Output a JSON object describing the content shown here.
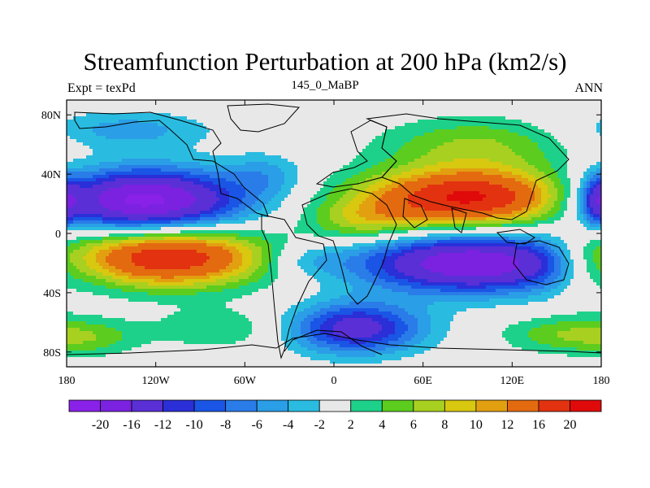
{
  "title": "Streamfunction Perturbation at 200 hPa (km2/s)",
  "left_string": "Expt = texPd",
  "center_string": "145_0_MaBP",
  "right_string": "ANN",
  "map": {
    "lon_range": [
      -180,
      180
    ],
    "lat_range": [
      -90,
      90
    ],
    "lon_ticks": [
      {
        "value": -180,
        "label": "180"
      },
      {
        "value": -120,
        "label": "120W"
      },
      {
        "value": -60,
        "label": "60W"
      },
      {
        "value": 0,
        "label": "0"
      },
      {
        "value": 60,
        "label": "60E"
      },
      {
        "value": 120,
        "label": "120E"
      },
      {
        "value": 180,
        "label": "180"
      }
    ],
    "lat_ticks": [
      {
        "value": 80,
        "label": "80N"
      },
      {
        "value": 40,
        "label": "40N"
      },
      {
        "value": 0,
        "label": "0"
      },
      {
        "value": -40,
        "label": "40S"
      },
      {
        "value": -80,
        "label": "80S"
      }
    ],
    "zero_band_color": "#e8e8e8",
    "anomalies": [
      {
        "lon": -130,
        "lat": 22,
        "amp": -22,
        "wlon": 48,
        "wlat": 15
      },
      {
        "lon": 92,
        "lat": 24,
        "amp": 21,
        "wlon": 52,
        "wlat": 14
      },
      {
        "lon": -115,
        "lat": -16,
        "amp": 20,
        "wlon": 50,
        "wlat": 14
      },
      {
        "lon": 95,
        "lat": -20,
        "amp": -20,
        "wlon": 55,
        "wlat": 14
      },
      {
        "lon": 15,
        "lat": -64,
        "amp": -14,
        "wlon": 32,
        "wlat": 12
      },
      {
        "lon": 20,
        "lat": 8,
        "amp": 6,
        "wlon": 28,
        "wlat": 10
      },
      {
        "lon": 95,
        "lat": 60,
        "amp": 6,
        "wlon": 45,
        "wlat": 13
      },
      {
        "lon": 150,
        "lat": -68,
        "amp": 5,
        "wlon": 28,
        "wlat": 9
      },
      {
        "lon": -165,
        "lat": -70,
        "amp": 5,
        "wlon": 25,
        "wlat": 9
      },
      {
        "lon": -75,
        "lat": -64,
        "amp": 4,
        "wlon": 32,
        "wlat": 10
      },
      {
        "lon": -140,
        "lat": 70,
        "amp": -5,
        "wlon": 40,
        "wlat": 9
      },
      {
        "lon": -45,
        "lat": 40,
        "amp": -4,
        "wlon": 18,
        "wlat": 10
      },
      {
        "lon": 178,
        "lat": 22,
        "amp": -10,
        "wlon": 8,
        "wlat": 12
      },
      {
        "lon": 170,
        "lat": -20,
        "amp": 4,
        "wlon": 15,
        "wlat": 18
      },
      {
        "lon": -20,
        "lat": -18,
        "amp": -4,
        "wlon": 20,
        "wlat": 8
      }
    ]
  },
  "colorbar": {
    "labels": [
      "-20",
      "-16",
      "-12",
      "-10",
      "-8",
      "-6",
      "-4",
      "-2",
      "2",
      "4",
      "6",
      "8",
      "10",
      "12",
      "16",
      "20"
    ],
    "levels": [
      -20,
      -16,
      -12,
      -10,
      -8,
      -6,
      -4,
      -2,
      2,
      4,
      6,
      8,
      10,
      12,
      16,
      20
    ],
    "colors": [
      "#8a21e8",
      "#7a22e0",
      "#5a2fd6",
      "#2a2fd8",
      "#1a55e6",
      "#2a7ce8",
      "#2a9ee6",
      "#2abce0",
      "#e8e8e8",
      "#1ed18a",
      "#5ccd1e",
      "#a8d020",
      "#d8c810",
      "#e2a010",
      "#e46a10",
      "#e23210",
      "#e00a0a"
    ]
  }
}
